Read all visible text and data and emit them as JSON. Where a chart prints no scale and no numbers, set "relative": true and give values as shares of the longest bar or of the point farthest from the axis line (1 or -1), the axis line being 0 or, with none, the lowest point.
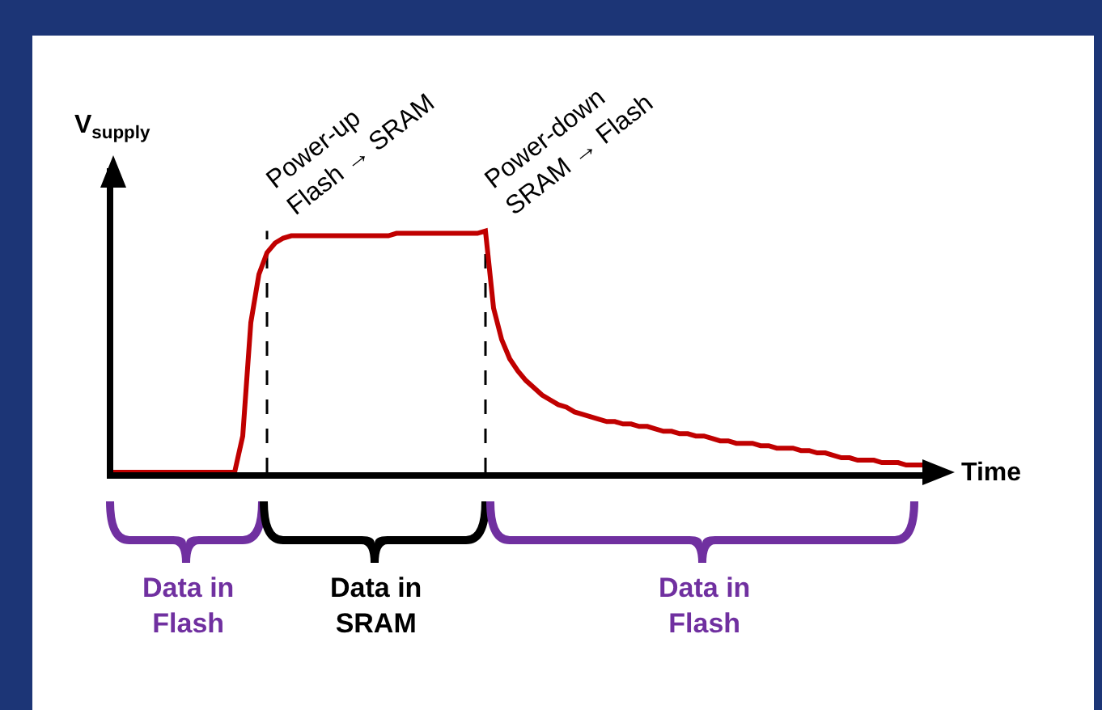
{
  "chart_data": {
    "type": "line",
    "relative": true,
    "marker": "none",
    "line_style": "solid",
    "xlabel": "Time",
    "ylabel": "V$_{supply}$",
    "categories": [
      null,
      null,
      null,
      null,
      null,
      null,
      null,
      null,
      null,
      null,
      null,
      null,
      null,
      null,
      null,
      null,
      null,
      null,
      null,
      null,
      null,
      null,
      null,
      null,
      null,
      null,
      null,
      null,
      null,
      null,
      null,
      null,
      null,
      null,
      null,
      null,
      null,
      null,
      null,
      null,
      null,
      null,
      null,
      null,
      null,
      null,
      null,
      null,
      null,
      null,
      null,
      null,
      null,
      null,
      null,
      null,
      null,
      null,
      null,
      null,
      null,
      null,
      null,
      null,
      null,
      null,
      null,
      null,
      null,
      null,
      null,
      null,
      null,
      null,
      null,
      null,
      null,
      null,
      null,
      null,
      null,
      null,
      null,
      null,
      null,
      null,
      null,
      null,
      null,
      null,
      null,
      null,
      null,
      null,
      null,
      null,
      null,
      null,
      null,
      null,
      null
    ],
    "series": [
      {
        "color": "#c00000",
        "values": [
          0,
          0,
          0,
          0,
          0,
          0,
          0,
          0,
          0,
          0,
          0,
          0,
          0,
          0,
          0,
          0,
          0.15,
          0.62,
          0.82,
          0.91,
          0.95,
          0.97,
          0.98,
          0.98,
          0.98,
          0.98,
          0.98,
          0.98,
          0.98,
          0.98,
          0.98,
          0.98,
          0.98,
          0.98,
          0.98,
          0.99,
          0.99,
          0.99,
          0.99,
          0.99,
          0.99,
          0.99,
          0.99,
          0.99,
          0.99,
          0.99,
          1.0,
          0.68,
          0.55,
          0.47,
          0.42,
          0.38,
          0.35,
          0.32,
          0.3,
          0.28,
          0.27,
          0.25,
          0.24,
          0.23,
          0.22,
          0.21,
          0.21,
          0.2,
          0.2,
          0.19,
          0.19,
          0.18,
          0.17,
          0.17,
          0.16,
          0.16,
          0.15,
          0.15,
          0.14,
          0.13,
          0.13,
          0.12,
          0.12,
          0.12,
          0.11,
          0.11,
          0.1,
          0.1,
          0.1,
          0.09,
          0.09,
          0.08,
          0.08,
          0.07,
          0.06,
          0.06,
          0.05,
          0.05,
          0.05,
          0.04,
          0.04,
          0.04,
          0.03,
          0.03,
          0.03
        ]
      }
    ],
    "annotations": [
      "Power-up\nFlash → SRAM",
      "Power-down\nSRAM → Flash",
      "Data in\nFlash",
      "Data in\nSRAM",
      "Data in\nFlash"
    ]
  }
}
